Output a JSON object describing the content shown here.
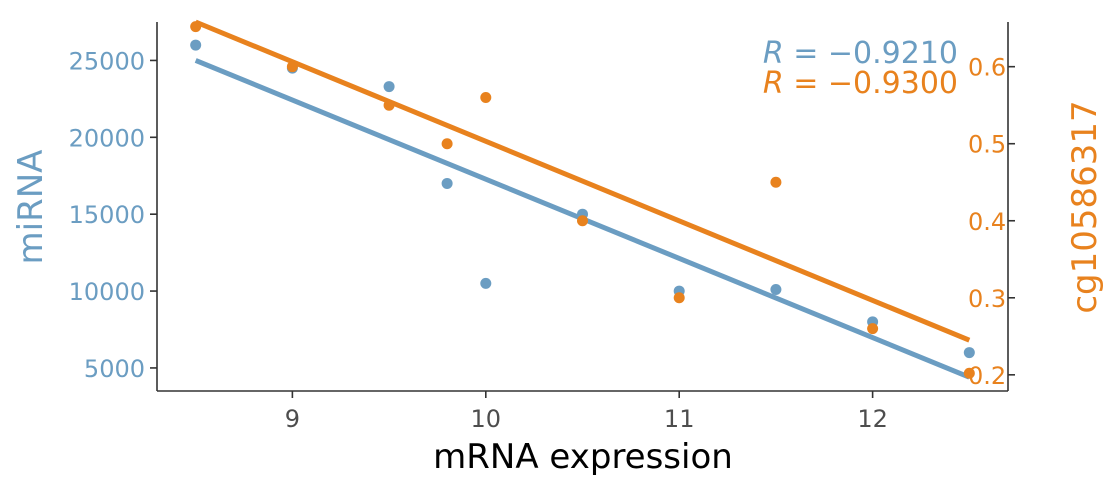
{
  "colors": {
    "blue": "#6b9dc2",
    "orange": "#e8821e",
    "axis": "#333333",
    "xtick": "#4d4d4d",
    "xtitle": "#000000"
  },
  "chart_data": {
    "type": "scatter",
    "xlabel": "mRNA expression",
    "ylabel_left": "miRNA",
    "ylabel_right": "cg10586317",
    "xlim": [
      8.3,
      12.7
    ],
    "ylim_left": [
      3500,
      27500
    ],
    "ylim_right": [
      0.179,
      0.658
    ],
    "x_ticks": [
      9,
      10,
      11,
      12
    ],
    "y_left_ticks": [
      5000,
      10000,
      15000,
      20000,
      25000
    ],
    "y_right_ticks": [
      0.2,
      0.3,
      0.4,
      0.5,
      0.6
    ],
    "y_right_tick_labels": [
      "0.2",
      "0.3",
      "0.4",
      "0.5",
      "0.6"
    ],
    "grid": false,
    "series": [
      {
        "name": "miRNA",
        "axis": "left",
        "color": "#6b9dc2",
        "points": [
          {
            "x": 8.5,
            "y": 26000
          },
          {
            "x": 9.0,
            "y": 24500
          },
          {
            "x": 9.5,
            "y": 23300
          },
          {
            "x": 9.8,
            "y": 17000
          },
          {
            "x": 10.0,
            "y": 10500
          },
          {
            "x": 10.5,
            "y": 15000
          },
          {
            "x": 11.0,
            "y": 10000
          },
          {
            "x": 11.5,
            "y": 10100
          },
          {
            "x": 12.0,
            "y": 8000
          },
          {
            "x": 12.5,
            "y": 6000
          }
        ],
        "fit": {
          "x": [
            8.5,
            12.5
          ],
          "y": [
            25000,
            4400
          ]
        },
        "corr_symbol": "R",
        "corr_text": " = −0.9210"
      },
      {
        "name": "cg10586317",
        "axis": "right",
        "color": "#e8821e",
        "points": [
          {
            "x": 8.5,
            "y": 0.652
          },
          {
            "x": 9.0,
            "y": 0.6
          },
          {
            "x": 9.5,
            "y": 0.55
          },
          {
            "x": 9.8,
            "y": 0.5
          },
          {
            "x": 10.0,
            "y": 0.56
          },
          {
            "x": 10.5,
            "y": 0.4
          },
          {
            "x": 11.0,
            "y": 0.3
          },
          {
            "x": 11.5,
            "y": 0.45
          },
          {
            "x": 12.0,
            "y": 0.26
          },
          {
            "x": 12.5,
            "y": 0.202
          }
        ],
        "fit": {
          "x": [
            8.5,
            12.5
          ],
          "y": [
            0.658,
            0.245
          ]
        },
        "corr_symbol": "R",
        "corr_text": " = −0.9300"
      }
    ]
  }
}
